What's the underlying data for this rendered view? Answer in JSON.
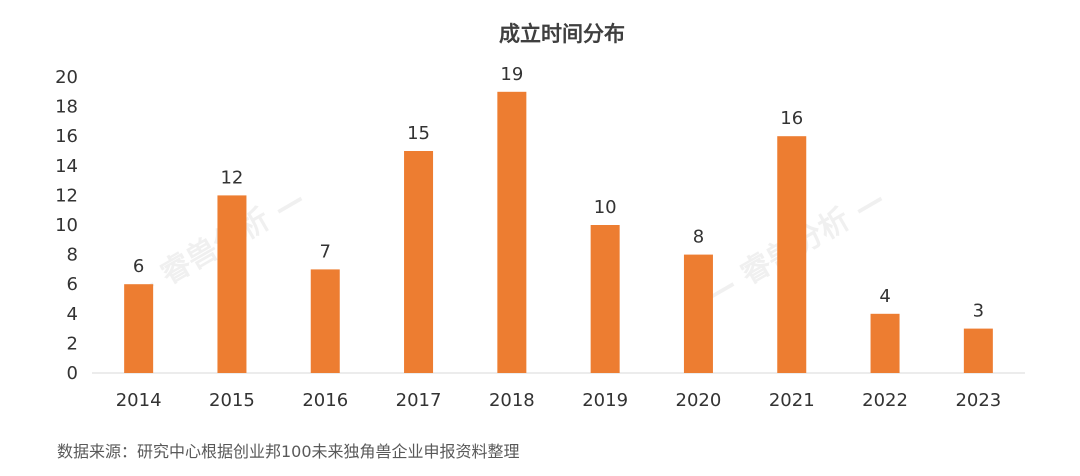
{
  "chart_data": {
    "type": "bar",
    "title": "成立时间分布",
    "categories": [
      "2014",
      "2015",
      "2016",
      "2017",
      "2018",
      "2019",
      "2020",
      "2021",
      "2022",
      "2023"
    ],
    "values": [
      6,
      12,
      7,
      15,
      19,
      10,
      8,
      16,
      4,
      3
    ],
    "ylim": [
      0,
      20
    ],
    "yticks": [
      0,
      2,
      4,
      6,
      8,
      10,
      12,
      14,
      16,
      18,
      20
    ],
    "xlabel": "",
    "ylabel": "",
    "grid": false,
    "data_labels": true,
    "bar_color": "#ed7d31"
  },
  "watermark": "— 睿兽分析 —",
  "source_note": "数据来源：研究中心根据创业邦100未来独角兽企业申报资料整理"
}
